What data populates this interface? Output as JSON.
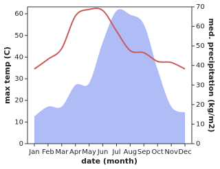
{
  "chart_data": {
    "type": "line-area",
    "x_label": "date (month)",
    "y_label": "max temp (C)",
    "y2_label": "med. precipitation (kg/m2)",
    "categories": [
      "Jan",
      "Feb",
      "Mar",
      "Apr",
      "May",
      "Jun",
      "Jul",
      "Aug",
      "Sep",
      "Oct",
      "Nov",
      "Dec"
    ],
    "series": [
      {
        "name": "max temp",
        "kind": "line",
        "color": "#c85a5a",
        "values": [
          34.5,
          39,
          44,
          59,
          62,
          61.5,
          52,
          43,
          42,
          38,
          37.5,
          34.5
        ]
      },
      {
        "name": "med. precipitation",
        "kind": "area",
        "axis": "y2",
        "color": "#b0bcf5",
        "values": [
          14,
          19,
          19,
          30,
          31,
          52,
          68,
          66,
          61,
          38,
          19,
          16
        ]
      }
    ],
    "ylim": [
      0,
      63.2
    ],
    "yticks": [
      0,
      10,
      20,
      30,
      40,
      50,
      60
    ],
    "y2lim": [
      0,
      70
    ],
    "y2ticks": [
      0,
      10,
      20,
      30,
      40,
      50,
      60,
      70
    ]
  }
}
